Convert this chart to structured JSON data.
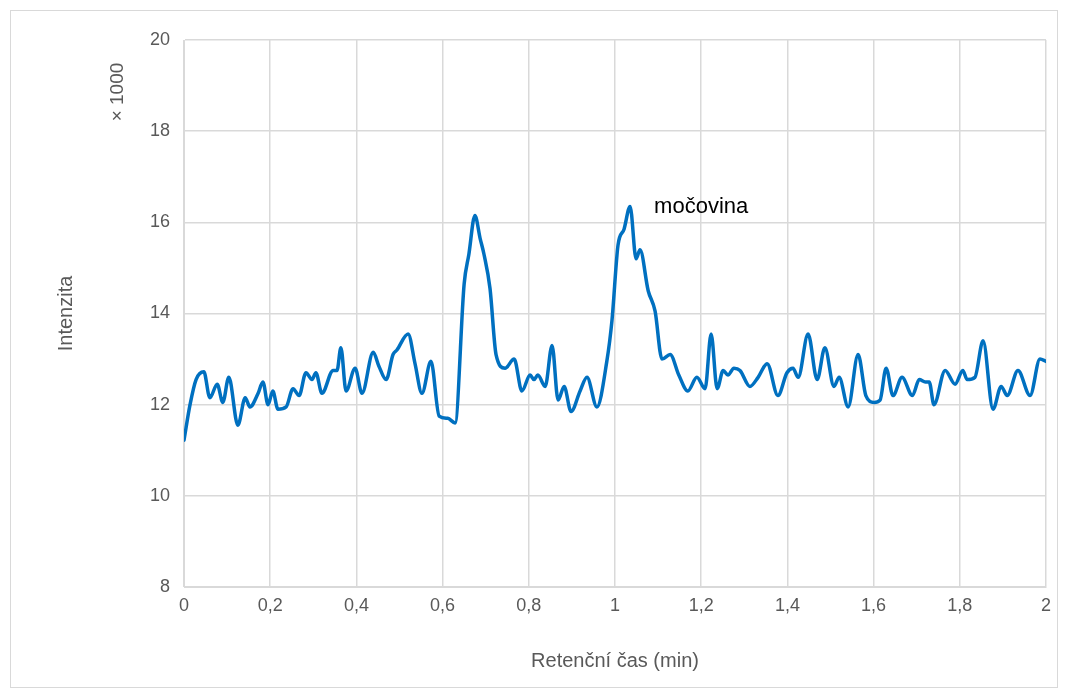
{
  "chart_data": {
    "type": "line",
    "xlabel": "Retenční čas (min)",
    "ylabel": "Intenzita",
    "annotations": [
      "× 1000",
      {
        "text": "močovina",
        "x": 1.035,
        "y": 16.35
      }
    ],
    "x": [
      0,
      0.014,
      0.028,
      0.046,
      0.06,
      0.077,
      0.09,
      0.104,
      0.125,
      0.142,
      0.153,
      0.172,
      0.183,
      0.195,
      0.206,
      0.218,
      0.237,
      0.253,
      0.267,
      0.283,
      0.297,
      0.306,
      0.32,
      0.346,
      0.355,
      0.364,
      0.376,
      0.397,
      0.413,
      0.439,
      0.452,
      0.469,
      0.485,
      0.494,
      0.52,
      0.536,
      0.552,
      0.573,
      0.592,
      0.612,
      0.629,
      0.65,
      0.661,
      0.675,
      0.687,
      0.696,
      0.71,
      0.724,
      0.745,
      0.766,
      0.784,
      0.803,
      0.812,
      0.821,
      0.838,
      0.854,
      0.868,
      0.882,
      0.898,
      0.919,
      0.935,
      0.958,
      0.981,
      0.993,
      1.007,
      1.021,
      1.035,
      1.049,
      1.058,
      1.077,
      1.093,
      1.109,
      1.128,
      1.148,
      1.169,
      1.19,
      1.209,
      1.223,
      1.237,
      1.251,
      1.262,
      1.276,
      1.29,
      1.313,
      1.332,
      1.353,
      1.378,
      1.399,
      1.413,
      1.425,
      1.448,
      1.469,
      1.487,
      1.508,
      1.52,
      1.541,
      1.564,
      1.582,
      1.601,
      1.615,
      1.629,
      1.645,
      1.666,
      1.69,
      1.706,
      1.72,
      1.729,
      1.74,
      1.766,
      1.789,
      1.807,
      1.817,
      1.835,
      1.854,
      1.877,
      1.896,
      1.91,
      1.935,
      1.963,
      1.986,
      2.0
    ],
    "series": [
      {
        "color": "#0070c0",
        "values": [
          11.22,
          12.0,
          12.55,
          12.72,
          12.15,
          12.45,
          12.05,
          12.6,
          11.55,
          12.15,
          11.95,
          12.25,
          12.5,
          12.0,
          12.3,
          11.9,
          11.95,
          12.35,
          12.2,
          12.7,
          12.55,
          12.7,
          12.25,
          12.75,
          12.75,
          13.25,
          12.3,
          12.8,
          12.25,
          13.15,
          12.85,
          12.55,
          13.1,
          13.2,
          13.55,
          12.9,
          12.25,
          12.95,
          11.75,
          11.7,
          11.6,
          14.65,
          15.3,
          16.15,
          15.65,
          15.3,
          14.55,
          13.1,
          12.8,
          13.0,
          12.3,
          12.65,
          12.55,
          12.65,
          12.4,
          13.3,
          12.1,
          12.4,
          11.85,
          12.3,
          12.6,
          11.95,
          12.95,
          13.85,
          15.5,
          15.85,
          16.35,
          15.2,
          15.4,
          14.5,
          14.05,
          13.0,
          13.1,
          12.65,
          12.3,
          12.6,
          12.35,
          13.55,
          12.35,
          12.75,
          12.65,
          12.8,
          12.75,
          12.4,
          12.6,
          12.9,
          12.2,
          12.7,
          12.8,
          12.6,
          13.55,
          12.55,
          13.25,
          12.4,
          12.6,
          11.95,
          13.1,
          12.2,
          12.05,
          12.1,
          12.8,
          12.2,
          12.6,
          12.2,
          12.55,
          12.5,
          12.5,
          12.0,
          12.75,
          12.45,
          12.75,
          12.55,
          12.6,
          13.4,
          11.9,
          12.4,
          12.2,
          12.75,
          12.2,
          13.0,
          12.95
        ]
      }
    ],
    "xlim": [
      0,
      2
    ],
    "xticks": [
      0,
      {
        "value": 0.2,
        "label": "0,2"
      },
      {
        "value": 0.4,
        "label": "0,4"
      },
      {
        "value": 0.6,
        "label": "0,6"
      },
      {
        "value": 0.8,
        "label": "0,8"
      },
      1,
      {
        "value": 1.2,
        "label": "1,2"
      },
      {
        "value": 1.4,
        "label": "1,4"
      },
      {
        "value": 1.6,
        "label": "1,6"
      },
      {
        "value": 1.8,
        "label": "1,8"
      },
      2
    ],
    "ylim": [
      8,
      20
    ],
    "yticks": [
      8,
      10,
      12,
      14,
      16,
      18,
      20
    ],
    "grid": true,
    "legend": false,
    "marker": "none",
    "line_style": "solid"
  }
}
